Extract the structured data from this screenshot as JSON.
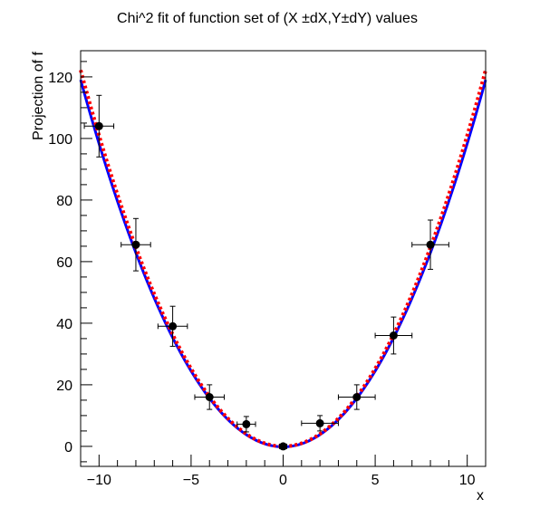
{
  "chart_data": {
    "type": "scatter",
    "title": "Chi^2 fit of function set of (X  ±dX,Y±dY) values",
    "xlabel": "x",
    "ylabel": "Projection of f",
    "xlim": [
      -11,
      11
    ],
    "ylim": [
      -6.5,
      128.5
    ],
    "x_ticks": [
      -10,
      -5,
      0,
      5,
      10
    ],
    "x_tick_labels": [
      "−10",
      "−5",
      "0",
      "5",
      "10"
    ],
    "y_ticks": [
      0,
      20,
      40,
      60,
      80,
      100,
      120
    ],
    "y_tick_labels": [
      "0",
      "20",
      "40",
      "60",
      "80",
      "100",
      "120"
    ],
    "grid": false,
    "points": [
      {
        "x": -10,
        "y": 104,
        "ex": 0.8,
        "ey": 10
      },
      {
        "x": -8,
        "y": 65.5,
        "ex": 0.8,
        "ey": 8.5
      },
      {
        "x": -6,
        "y": 39,
        "ex": 0.8,
        "ey": 6.5
      },
      {
        "x": -4,
        "y": 16,
        "ex": 0.8,
        "ey": 4
      },
      {
        "x": -2,
        "y": 7.2,
        "ex": 0.5,
        "ey": 2.5
      },
      {
        "x": 0,
        "y": 0,
        "ex": 0.2,
        "ey": 0.4
      },
      {
        "x": 2,
        "y": 7.5,
        "ex": 1.0,
        "ey": 2.5
      },
      {
        "x": 4,
        "y": 16,
        "ex": 1.0,
        "ey": 4
      },
      {
        "x": 6,
        "y": 36,
        "ex": 1.0,
        "ey": 6
      },
      {
        "x": 8,
        "y": 65.5,
        "ex": 1.0,
        "ey": 8
      }
    ],
    "fits": [
      {
        "style": "solid",
        "color": "#0000ff",
        "a": 0.985,
        "b": -0.15
      },
      {
        "style": "dotted",
        "color": "#ff0000",
        "a": 1.01,
        "b": 0.0
      }
    ],
    "colors": {
      "points": "#000000",
      "frame": "#000000"
    }
  }
}
